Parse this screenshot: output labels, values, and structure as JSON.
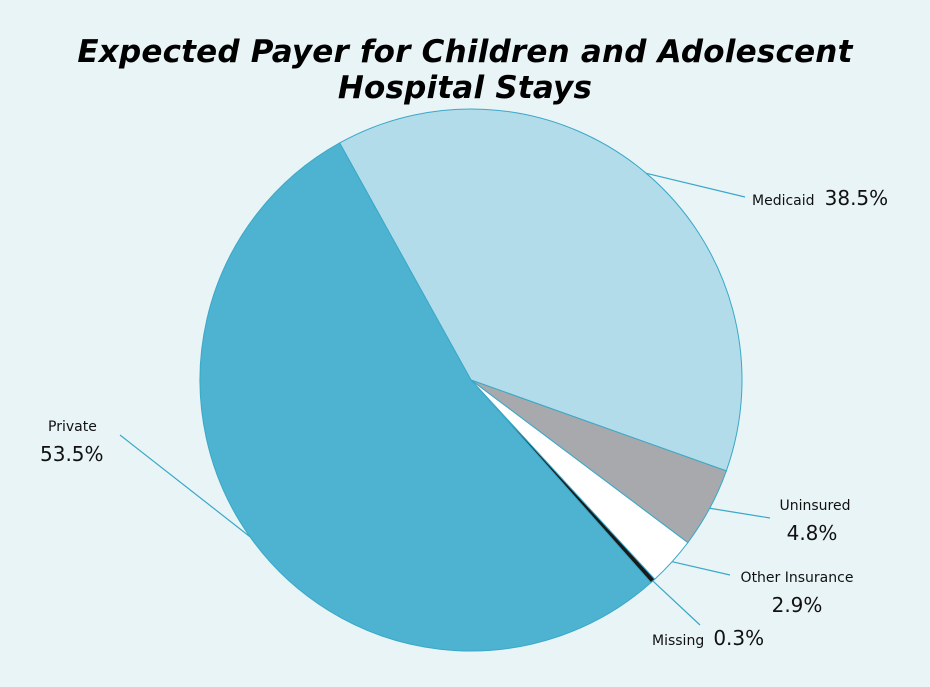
{
  "chart_data": {
    "type": "pie",
    "title": "Expected Payer for Children and Adolescent Hospital Stays",
    "slices": [
      {
        "name": "Medicaid",
        "value": 38.5,
        "display": "38.5%",
        "color": "#b3dcea"
      },
      {
        "name": "Uninsured",
        "value": 4.8,
        "display": "4.8%",
        "color": "#a7a9ac"
      },
      {
        "name": "Other Insurance",
        "value": 2.9,
        "display": "2.9%",
        "color": "#ffffff"
      },
      {
        "name": "Missing",
        "value": 0.3,
        "display": "0.3%",
        "color": "#1a1a1a"
      },
      {
        "name": "Private",
        "value": 53.5,
        "display": "53.5%",
        "color": "#4db3d0"
      }
    ],
    "stroke_color": "#3aa8c8",
    "background": "#e9f4f7"
  }
}
